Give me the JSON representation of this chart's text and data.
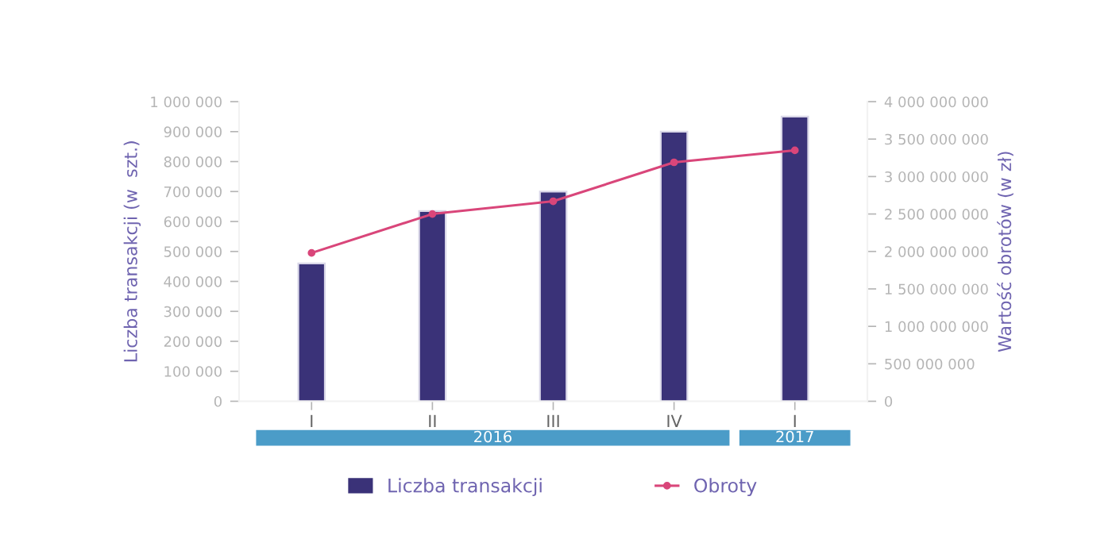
{
  "chart_data": {
    "type": "bar",
    "ylabel": "Liczba transakcji (w  szt.)",
    "y2label": "Wartość obrotów (w zł)",
    "categories": [
      "I",
      "II",
      "III",
      "IV",
      "I"
    ],
    "series": [
      {
        "name": "Liczba transakcji",
        "color": "#3a3278",
        "values": [
          460000,
          635000,
          700000,
          900000,
          950000
        ]
      },
      {
        "name": "Obroty",
        "type": "line",
        "axis": "y2",
        "color": "#d9467a",
        "marker": "circle",
        "values": [
          1980000000,
          2500000000,
          2670000000,
          3190000000,
          3350000000
        ]
      }
    ],
    "ylim": [
      0,
      1000000
    ],
    "yticks": [
      {
        "value": 0,
        "label": "0"
      },
      {
        "value": 100000,
        "label": "100 000"
      },
      {
        "value": 200000,
        "label": "200 000"
      },
      {
        "value": 300000,
        "label": "300 000"
      },
      {
        "value": 400000,
        "label": "400 000"
      },
      {
        "value": 500000,
        "label": "500 000"
      },
      {
        "value": 600000,
        "label": "600 000"
      },
      {
        "value": 700000,
        "label": "700 000"
      },
      {
        "value": 800000,
        "label": "800 000"
      },
      {
        "value": 900000,
        "label": "900 000"
      },
      {
        "value": 1000000,
        "label": "1 000 000"
      }
    ],
    "y2lim": [
      0,
      4000000000
    ],
    "y2ticks": [
      {
        "value": 0,
        "label": "0"
      },
      {
        "value": 500000000,
        "label": "500 000 000"
      },
      {
        "value": 1000000000,
        "label": "1 000 000 000"
      },
      {
        "value": 1500000000,
        "label": "1 500 000 000"
      },
      {
        "value": 2000000000,
        "label": "2 000 000 000"
      },
      {
        "value": 2500000000,
        "label": "2 500 000 000"
      },
      {
        "value": 3000000000,
        "label": "3 000 000 000"
      },
      {
        "value": 3500000000,
        "label": "3 500 000 000"
      },
      {
        "value": 4000000000,
        "label": "4 000 000 000"
      }
    ],
    "annotations": [
      "2016",
      "2017"
    ],
    "grid": false,
    "legend": "bottom"
  }
}
